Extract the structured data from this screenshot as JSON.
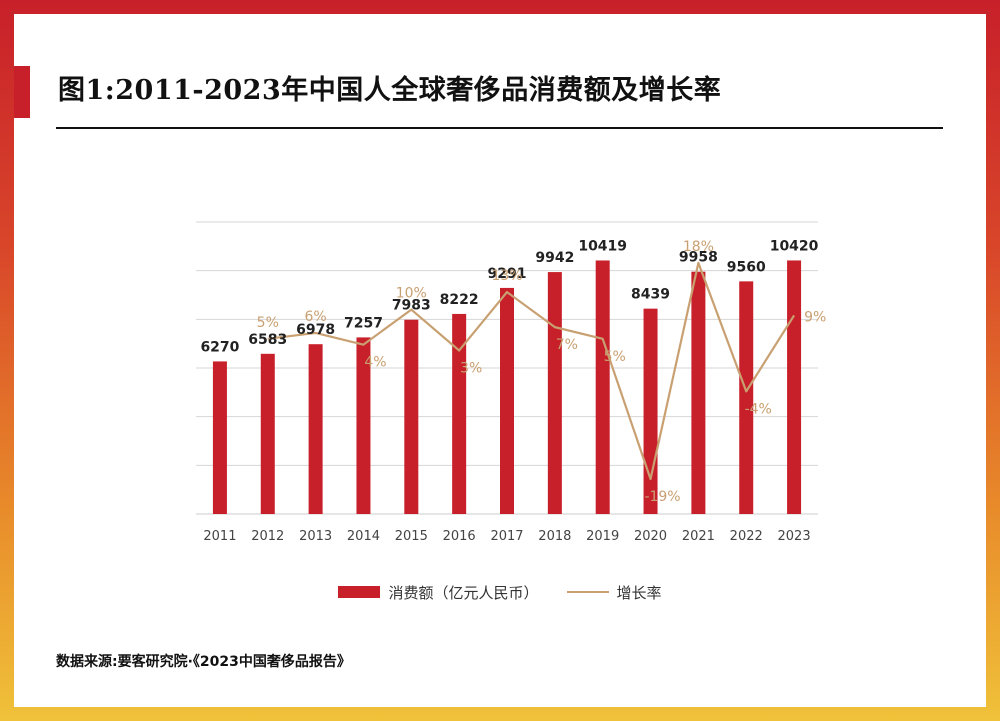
{
  "title": "图1:2011-2023年中国人全球奢侈品消费额及增长率",
  "source": "数据来源:要客研究院·《2023中国奢侈品报告》",
  "legend": {
    "bar_label": "消费额（亿元人民币）",
    "line_label": "增长率"
  },
  "colors": {
    "bar": "#c8202a",
    "line": "#c8a071",
    "grid": "#d6d6d6"
  },
  "chart_data": {
    "type": "bar",
    "categories": [
      "2011",
      "2012",
      "2013",
      "2014",
      "2015",
      "2016",
      "2017",
      "2018",
      "2019",
      "2020",
      "2021",
      "2022",
      "2023"
    ],
    "series": [
      {
        "name": "消费额（亿元人民币）",
        "type": "bar",
        "values": [
          6270,
          6583,
          6978,
          7257,
          7983,
          8222,
          9291,
          9942,
          10419,
          8439,
          9958,
          9560,
          10420
        ],
        "labels": [
          "6270",
          "6583",
          "6978",
          "7257",
          "7983",
          "8222",
          "9291",
          "9942",
          "10419",
          "8439",
          "9958",
          "9560",
          "10420"
        ]
      },
      {
        "name": "增长率",
        "type": "line",
        "values": [
          null,
          5,
          6,
          4,
          10,
          3,
          13,
          7,
          5,
          -19,
          18,
          -4,
          9
        ],
        "labels": [
          "",
          "5%",
          "6%",
          "4%",
          "10%",
          "3%",
          "13%",
          "7%",
          "5%",
          "-19%",
          "18%",
          "-4%",
          "9%"
        ]
      }
    ],
    "ylim_bar": [
      0,
      12000
    ],
    "ylim_rate": [
      -25,
      25
    ],
    "grid": true,
    "legend_position": "bottom"
  }
}
